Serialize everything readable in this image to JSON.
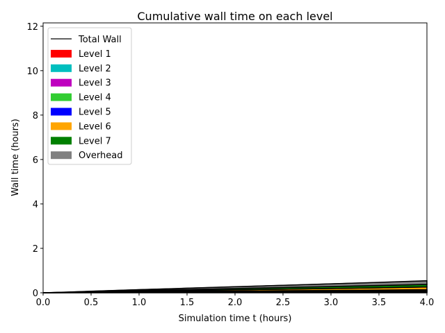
{
  "chart_data": {
    "type": "area",
    "title": "Cumulative wall time on each level",
    "xlabel": "Simulation time t (hours)",
    "ylabel": "Wall time (hours)",
    "xlim": [
      0,
      4
    ],
    "ylim": [
      0,
      12.15
    ],
    "x_ticks": [
      0,
      0.5,
      1,
      1.5,
      2,
      2.5,
      3,
      3.5,
      4
    ],
    "x_tick_labels": [
      "0.0",
      "0.5",
      "1.0",
      "1.5",
      "2.0",
      "2.5",
      "3.0",
      "3.5",
      "4.0"
    ],
    "y_ticks": [
      0,
      2,
      4,
      6,
      8,
      10,
      12
    ],
    "y_tick_labels": [
      "0",
      "2",
      "4",
      "6",
      "8",
      "10",
      "12"
    ],
    "grid": false,
    "legend_position": "top-left",
    "x": [
      0,
      0.25,
      0.5,
      1.0,
      1.5,
      2.0,
      2.5,
      3.0,
      3.5,
      4.0
    ],
    "series": [
      {
        "name": "Level 1",
        "color": "#ff0000",
        "values": [
          0,
          0.002,
          0.004,
          0.007,
          0.009,
          0.011,
          0.013,
          0.015,
          0.017,
          0.02
        ]
      },
      {
        "name": "Level 2",
        "color": "#00bfbf",
        "values": [
          0,
          0.003,
          0.006,
          0.01,
          0.013,
          0.016,
          0.019,
          0.022,
          0.025,
          0.03
        ]
      },
      {
        "name": "Level 3",
        "color": "#bf00bf",
        "values": [
          0,
          0.003,
          0.006,
          0.01,
          0.014,
          0.018,
          0.021,
          0.024,
          0.027,
          0.03
        ]
      },
      {
        "name": "Level 4",
        "color": "#32cd32",
        "values": [
          0,
          0.002,
          0.004,
          0.008,
          0.011,
          0.014,
          0.017,
          0.02,
          0.023,
          0.025
        ]
      },
      {
        "name": "Level 5",
        "color": "#0000ff",
        "values": [
          0,
          0.002,
          0.005,
          0.01,
          0.014,
          0.018,
          0.022,
          0.026,
          0.03,
          0.035
        ]
      },
      {
        "name": "Level 6",
        "color": "#ffa500",
        "values": [
          0,
          0.005,
          0.012,
          0.025,
          0.04,
          0.055,
          0.07,
          0.085,
          0.1,
          0.12
        ]
      },
      {
        "name": "Level 7",
        "color": "#008000",
        "values": [
          0,
          0.006,
          0.015,
          0.03,
          0.045,
          0.06,
          0.075,
          0.09,
          0.105,
          0.12
        ]
      },
      {
        "name": "Overhead",
        "color": "#808080",
        "values": [
          0,
          0.008,
          0.018,
          0.04,
          0.06,
          0.08,
          0.1,
          0.12,
          0.14,
          0.16
        ]
      }
    ],
    "total_series": {
      "name": "Total Wall",
      "color": "#000000",
      "values": [
        0,
        0.031,
        0.07,
        0.14,
        0.206,
        0.272,
        0.337,
        0.402,
        0.467,
        0.54
      ]
    },
    "legend_entries": [
      "Total Wall",
      "Level 1",
      "Level 2",
      "Level 3",
      "Level 4",
      "Level 5",
      "Level 6",
      "Level 7",
      "Overhead"
    ]
  }
}
